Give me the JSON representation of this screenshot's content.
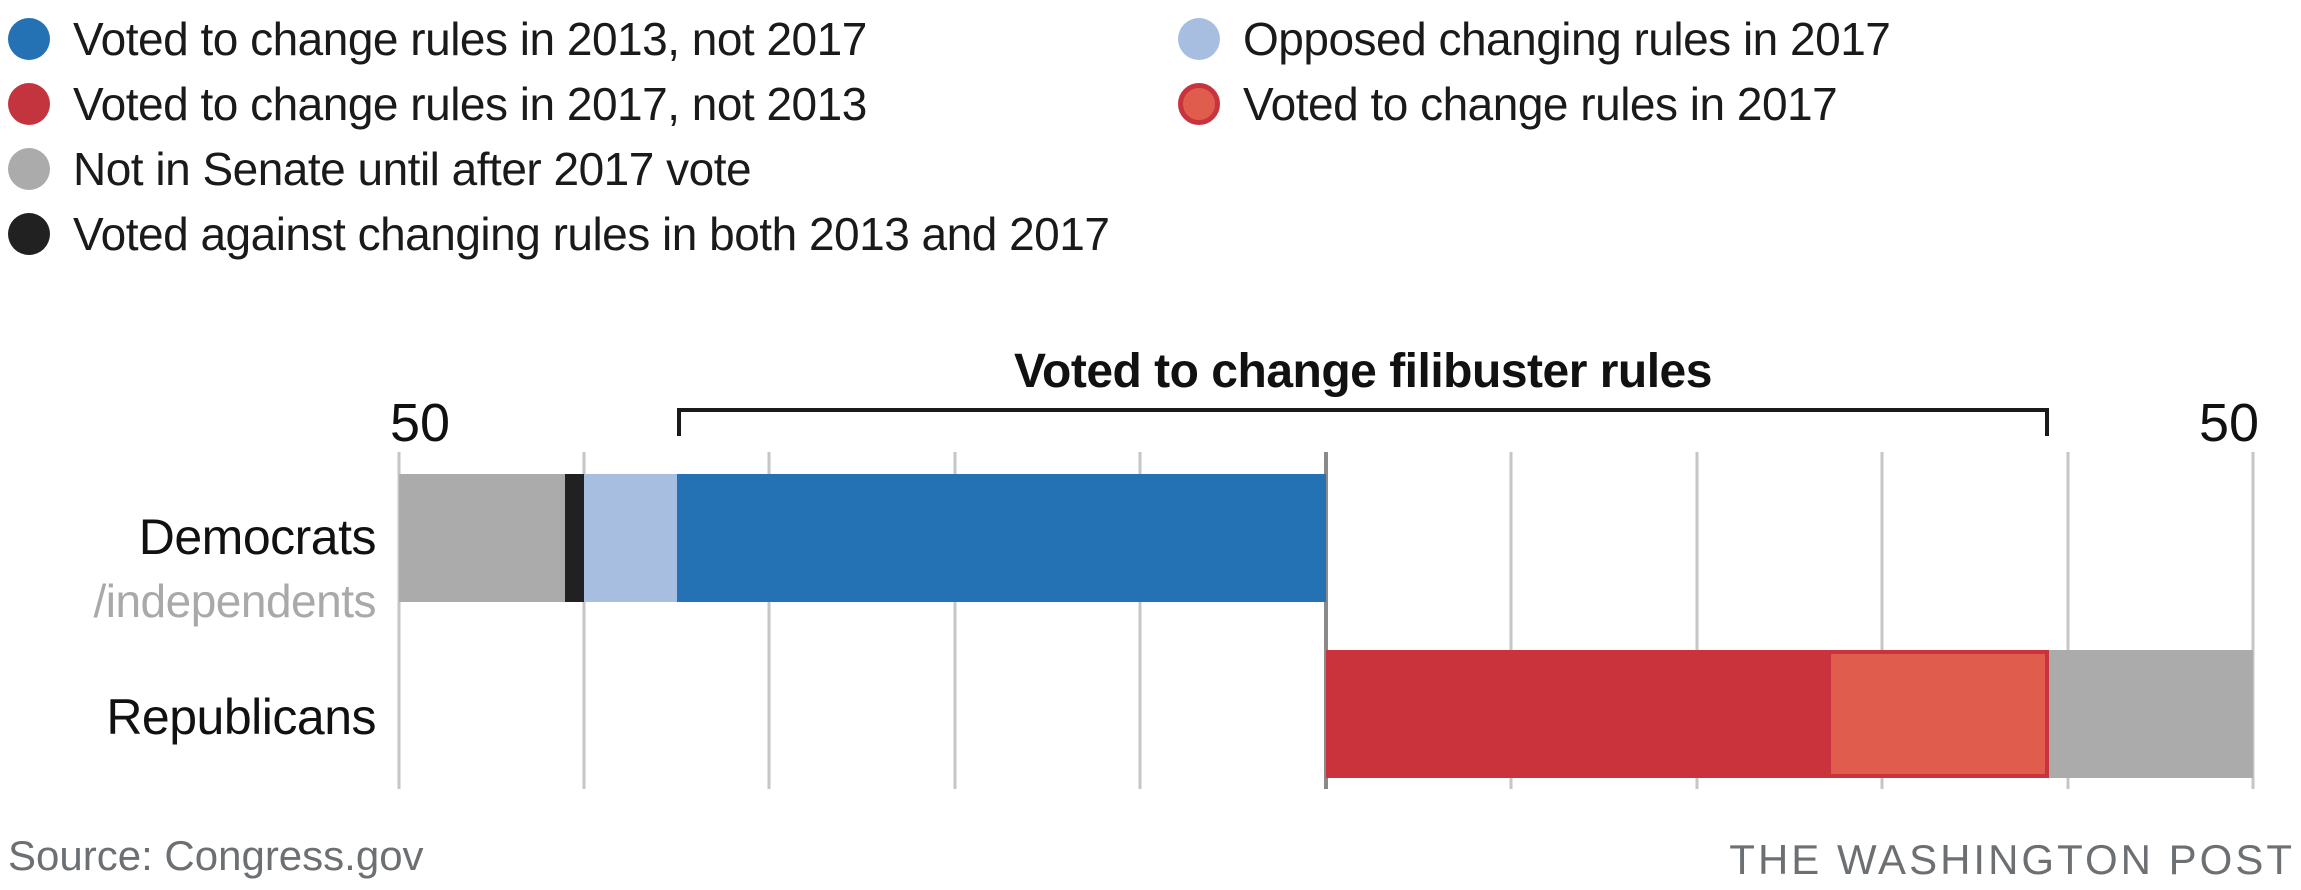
{
  "legend": {
    "columns": [
      [
        {
          "label": "Voted to change rules in 2013, not 2017",
          "color": "#2471b3"
        },
        {
          "label": "Voted to change rules in 2017, not 2013",
          "color": "#c4343e"
        },
        {
          "label": "Not in Senate until after 2017 vote",
          "color": "#ababab"
        },
        {
          "label": "Voted against changing rules in both 2013 and 2017",
          "color": "#212121"
        }
      ],
      [
        {
          "label": "Opposed changing rules in 2017",
          "color": "#a7bee1"
        },
        {
          "label": "Voted to change rules in 2017",
          "color": "#e05d4e",
          "border": "#c9333e"
        }
      ]
    ]
  },
  "chart_data": {
    "type": "bar",
    "subtype": "diverging-stacked-horizontal",
    "title": "Voted to change filibuster rules",
    "axis": {
      "center_value": 0,
      "side_max": 50,
      "gridline_interval": 10,
      "left_label": "50",
      "right_label": "50",
      "grid": true
    },
    "rows": [
      {
        "label": "Democrats",
        "sublabel": "/independents",
        "side": "left",
        "total": 50,
        "segments_outer_to_center": [
          {
            "name": "Not in Senate until after 2017 vote",
            "value": 9,
            "color": "#ababab"
          },
          {
            "name": "Voted against changing rules in both 2013 and 2017",
            "value": 1,
            "color": "#212121"
          },
          {
            "name": "Opposed changing rules in 2017",
            "value": 5,
            "color": "#a7bee1"
          },
          {
            "name": "Voted to change rules in 2013, not 2017",
            "value": 35,
            "color": "#2471b3",
            "in_bracket": true
          }
        ]
      },
      {
        "label": "Republicans",
        "side": "right",
        "total": 50,
        "segments_center_to_outer": [
          {
            "name": "Voted to change rules in 2017, not 2013",
            "value": 27,
            "color": "#cb333c",
            "in_bracket": true
          },
          {
            "name": "Voted to change rules in 2017",
            "value": 12,
            "color": "#e05d4e",
            "border": "#c9333e",
            "in_bracket": true
          },
          {
            "name": "Not in Senate until after 2017 vote",
            "value": 11,
            "color": "#ababab"
          }
        ]
      }
    ]
  },
  "footer": {
    "source": "Source: Congress.gov",
    "credit": "THE WASHINGTON POST"
  }
}
